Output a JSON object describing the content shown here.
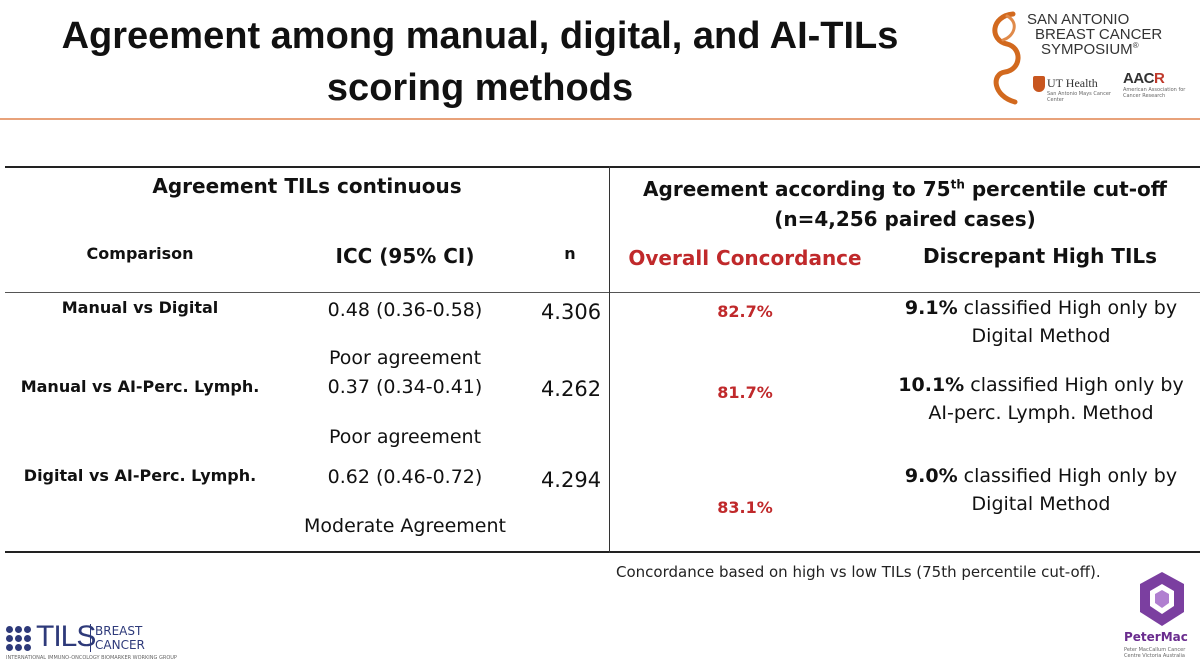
{
  "slide": {
    "title_line1": "Agreement among manual, digital, and AI-TILs",
    "title_line2": "scoring methods"
  },
  "logos": {
    "sabcs_line1": "SAN ANTONIO",
    "sabcs_line2": "BREAST CANCER",
    "sabcs_line3": "SYMPOSIUM",
    "sabcs_reg": "®",
    "ut_name": "UT Health",
    "ut_sub": "San Antonio Mays Cancer Center",
    "aacr_a": "AAC",
    "aacr_r": "R",
    "aacr_sub": "American Association for Cancer Research",
    "tils_word": "TILS",
    "tils_bc_1": "BREAST",
    "tils_bc_2": "CANCER",
    "tils_sub": "INTERNATIONAL IMMUNO-ONCOLOGY BIOMARKER WORKING GROUP",
    "petermac_name": "PeterMac",
    "petermac_sub": "Peter MacCallum Cancer Centre Victoria Australia"
  },
  "table": {
    "left_header": "Agreement TILs continuous",
    "right_header_a": "Agreement according to 75",
    "right_header_sup": "th",
    "right_header_b": " percentile cut-off",
    "right_header_line2": "(n=4,256 paired cases)",
    "columns": {
      "comparison": "Comparison",
      "icc": "ICC (95% CI)",
      "n": "n",
      "concordance": "Overall Concordance",
      "discrepant": "Discrepant High TILs"
    },
    "rows": [
      {
        "comparison": "Manual vs Digital",
        "icc": "0.48 (0.36-0.58)",
        "agreement": "Poor agreement",
        "n": "4.306",
        "concordance": "82.7%",
        "disc_pct": "9.1%",
        "disc_text": " classified High only by",
        "disc_line2": "Digital Method"
      },
      {
        "comparison": "Manual vs AI-Perc. Lymph.",
        "icc": "0.37 (0.34-0.41)",
        "agreement": "Poor agreement",
        "n": "4.262",
        "concordance": "81.7%",
        "disc_pct": "10.1%",
        "disc_text": " classified High only by",
        "disc_line2": "AI-perc. Lymph. Method"
      },
      {
        "comparison": "Digital vs AI-Perc. Lymph.",
        "icc": "0.62 (0.46-0.72)",
        "agreement": "Moderate Agreement",
        "n": "4.294",
        "concordance": "83.1%",
        "disc_pct": "9.0%",
        "disc_text": " classified High only by",
        "disc_line2": "Digital Method"
      }
    ],
    "footnote": "Concordance based on high vs low TILs (75th percentile cut-off)."
  },
  "colors": {
    "accent_red": "#c0292b",
    "rule_orange": "#e8a27a",
    "tils_blue": "#2e3a7a",
    "petermac_purple": "#6a2c8e"
  }
}
